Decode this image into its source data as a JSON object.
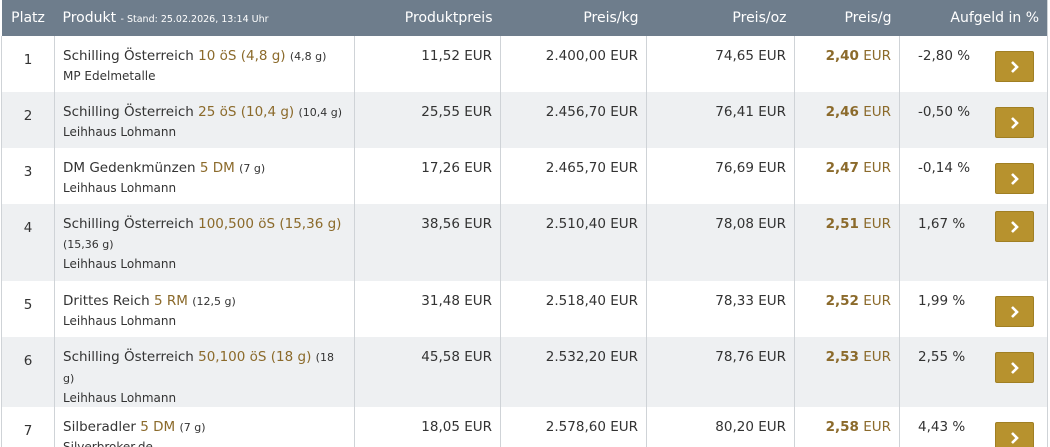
{
  "header": {
    "platz": "Platz",
    "produkt": "Produkt",
    "stand": "- Stand: 25.02.2026, 13:14 Uhr",
    "produktpreis": "Produktpreis",
    "preis_kg": "Preis/kg",
    "preis_oz": "Preis/oz",
    "preis_g": "Preis/g",
    "aufgeld": "Aufgeld in %"
  },
  "rows": [
    {
      "platz": "1",
      "name": "Schilling Österreich",
      "variant": "10 öS (4,8 g)",
      "weight": "(4,8 g)",
      "dealer": "MP Edelmetalle",
      "produktpreis": "11,52 EUR",
      "preis_kg": "2.400,00 EUR",
      "preis_oz": "74,65 EUR",
      "preis_g": "2,40",
      "preis_g_unit": "EUR",
      "aufgeld": "-2,80 %"
    },
    {
      "platz": "2",
      "name": "Schilling Österreich",
      "variant": "25 öS (10,4 g)",
      "weight": "(10,4 g)",
      "dealer": "Leihhaus Lohmann",
      "produktpreis": "25,55 EUR",
      "preis_kg": "2.456,70 EUR",
      "preis_oz": "76,41 EUR",
      "preis_g": "2,46",
      "preis_g_unit": "EUR",
      "aufgeld": "-0,50 %"
    },
    {
      "platz": "3",
      "name": "DM Gedenkmünzen",
      "variant": "5 DM",
      "weight": "(7 g)",
      "dealer": "Leihhaus Lohmann",
      "produktpreis": "17,26 EUR",
      "preis_kg": "2.465,70 EUR",
      "preis_oz": "76,69 EUR",
      "preis_g": "2,47",
      "preis_g_unit": "EUR",
      "aufgeld": "-0,14 %"
    },
    {
      "platz": "4",
      "name": "Schilling Österreich",
      "variant": "100,500 öS (15,36 g)",
      "weight": "(15,36 g)",
      "dealer": "Leihhaus Lohmann",
      "produktpreis": "38,56 EUR",
      "preis_kg": "2.510,40 EUR",
      "preis_oz": "78,08 EUR",
      "preis_g": "2,51",
      "preis_g_unit": "EUR",
      "aufgeld": "1,67 %"
    },
    {
      "platz": "5",
      "name": "Drittes Reich",
      "variant": "5 RM",
      "weight": "(12,5 g)",
      "dealer": "Leihhaus Lohmann",
      "produktpreis": "31,48 EUR",
      "preis_kg": "2.518,40 EUR",
      "preis_oz": "78,33 EUR",
      "preis_g": "2,52",
      "preis_g_unit": "EUR",
      "aufgeld": "1,99 %"
    },
    {
      "platz": "6",
      "name": "Schilling Österreich",
      "variant": "50,100 öS (18 g)",
      "weight": "(18 g)",
      "dealer": "Leihhaus Lohmann",
      "produktpreis": "45,58 EUR",
      "preis_kg": "2.532,20 EUR",
      "preis_oz": "78,76 EUR",
      "preis_g": "2,53",
      "preis_g_unit": "EUR",
      "aufgeld": "2,55 %"
    },
    {
      "platz": "7",
      "name": "Silberadler",
      "variant": "5 DM",
      "weight": "(7 g)",
      "dealer": "Silverbroker.de",
      "produktpreis": "18,05 EUR",
      "preis_kg": "2.578,60 EUR",
      "preis_oz": "80,20 EUR",
      "preis_g": "2,58",
      "preis_g_unit": "EUR",
      "aufgeld": "4,43 %"
    }
  ]
}
